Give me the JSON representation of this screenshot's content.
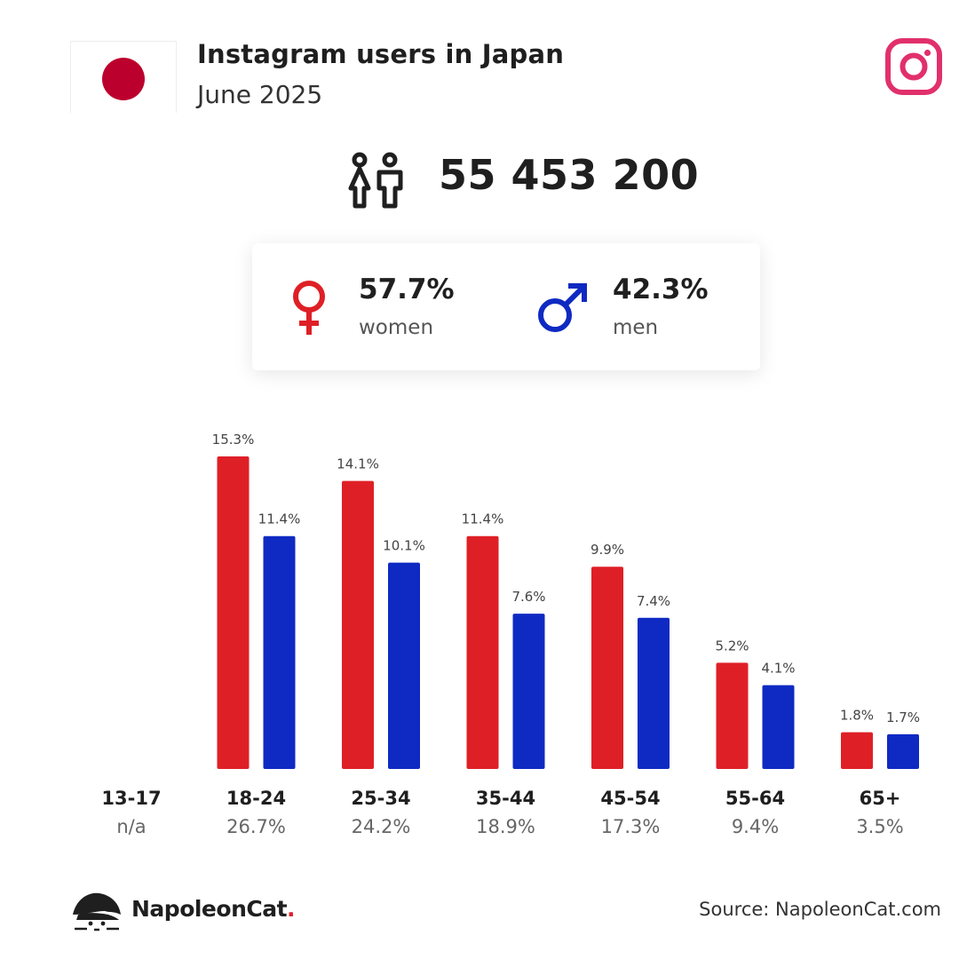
{
  "header": {
    "title": "Instagram users in Japan",
    "subtitle": "June 2025",
    "flag_icon": "japan-flag-icon",
    "platform_icon": "instagram-icon"
  },
  "summary": {
    "total_users": "55 453 200",
    "people_icon": "people-icon",
    "women_pct": "57.7%",
    "women_label": "women",
    "men_pct": "42.3%",
    "men_label": "men"
  },
  "colors": {
    "women": "#df1f26",
    "men": "#0f2ac2",
    "flag_red": "#bc002d",
    "instagram": "#e1306c"
  },
  "chart_data": {
    "type": "bar",
    "categories": [
      "13-17",
      "18-24",
      "25-34",
      "35-44",
      "45-54",
      "55-64",
      "65+"
    ],
    "category_totals": [
      "n/a",
      "26.7%",
      "24.2%",
      "18.9%",
      "17.3%",
      "9.4%",
      "3.5%"
    ],
    "series": [
      {
        "name": "women",
        "values": [
          null,
          15.3,
          14.1,
          11.4,
          9.9,
          5.2,
          1.8
        ],
        "labels": [
          "",
          "15.3%",
          "14.1%",
          "11.4%",
          "9.9%",
          "5.2%",
          "1.8%"
        ]
      },
      {
        "name": "men",
        "values": [
          null,
          11.4,
          10.1,
          7.6,
          7.4,
          4.1,
          1.7
        ],
        "labels": [
          "",
          "11.4%",
          "10.1%",
          "7.6%",
          "7.4%",
          "4.1%",
          "1.7%"
        ]
      }
    ],
    "ylim": [
      0,
      15.3
    ],
    "grid": false,
    "legend": "none"
  },
  "footer": {
    "brand_prefix": "NapoleonCat",
    "brand_dot": ".",
    "brand_icon": "napoleoncat-logo-icon",
    "source": "Source: NapoleonCat.com"
  }
}
